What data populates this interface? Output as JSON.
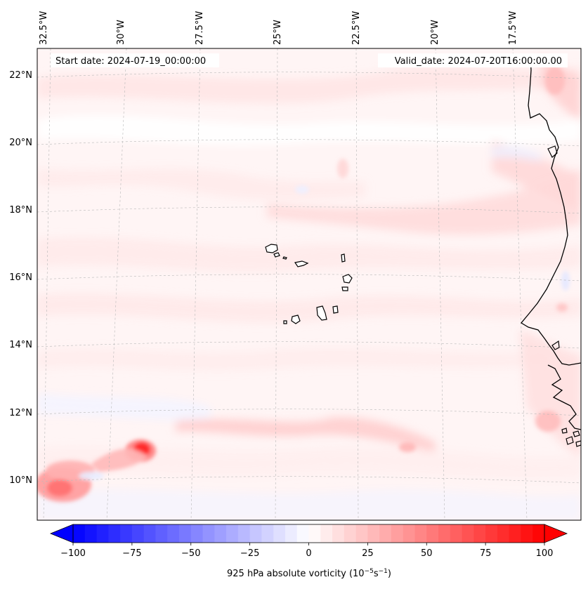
{
  "header": {
    "start_date": "Start date: 2024-07-19_00:00:00",
    "valid_date": "Valid_date: 2024-07-20T16:00:00.00"
  },
  "longitude_ticks": [
    "32.5°W",
    "30°W",
    "27.5°W",
    "25°W",
    "22.5°W",
    "20°W",
    "17.5°W"
  ],
  "latitude_ticks": [
    "22°N",
    "20°N",
    "18°N",
    "16°N",
    "14°N",
    "12°N",
    "10°N"
  ],
  "colorbar": {
    "label": "925 hPa absolute vorticity (10",
    "label_exp": "−5",
    "label_unit": "s",
    "label_exp2": "−1",
    "label_end": ")",
    "tick_labels": [
      "−100",
      "−75",
      "−50",
      "−25",
      "0",
      "25",
      "50",
      "75",
      "100"
    ],
    "min": -100,
    "max": 100,
    "neg_color": "#0000ff",
    "pos_color": "#ff0000"
  },
  "colors": {
    "coastline": "#000000",
    "gridline": "#b0b0b0",
    "background_field": "#fff4f4"
  }
}
